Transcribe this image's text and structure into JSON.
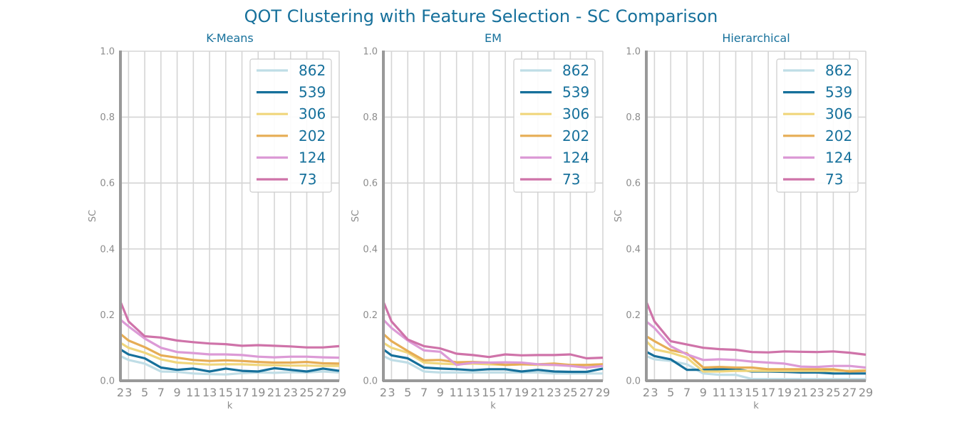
{
  "figure": {
    "title": "QOT Clustering with Feature Selection - SC Comparison"
  },
  "chart_data": [
    {
      "type": "line",
      "title": "K-Means",
      "xlabel": "k",
      "ylabel": "SC",
      "xlim": [
        2,
        29
      ],
      "ylim": [
        0.0,
        1.0
      ],
      "xticks": [
        2,
        3,
        5,
        7,
        9,
        11,
        13,
        15,
        17,
        19,
        21,
        23,
        25,
        27,
        29
      ],
      "yticks": [
        "0.0",
        "0.2",
        "0.4",
        "0.6",
        "0.8",
        "1.0"
      ],
      "legend": "top-right",
      "x": [
        2,
        3,
        5,
        7,
        9,
        11,
        13,
        15,
        17,
        19,
        21,
        23,
        25,
        27,
        29
      ],
      "series": [
        {
          "name": "862",
          "color": "#bfdde6",
          "values": [
            0.075,
            0.063,
            0.052,
            0.028,
            0.027,
            0.022,
            0.02,
            0.019,
            0.023,
            0.025,
            0.024,
            0.026,
            0.025,
            0.028,
            0.025
          ]
        },
        {
          "name": "539",
          "color": "#16709b",
          "values": [
            0.095,
            0.08,
            0.068,
            0.04,
            0.033,
            0.037,
            0.028,
            0.037,
            0.03,
            0.028,
            0.038,
            0.033,
            0.028,
            0.037,
            0.03
          ]
        },
        {
          "name": "306",
          "color": "#f0d67c",
          "values": [
            0.115,
            0.1,
            0.085,
            0.065,
            0.055,
            0.052,
            0.049,
            0.05,
            0.05,
            0.048,
            0.047,
            0.046,
            0.046,
            0.045,
            0.045
          ]
        },
        {
          "name": "202",
          "color": "#e6ad55",
          "values": [
            0.142,
            0.122,
            0.102,
            0.077,
            0.07,
            0.063,
            0.06,
            0.062,
            0.06,
            0.057,
            0.055,
            0.055,
            0.057,
            0.053,
            0.052
          ]
        },
        {
          "name": "124",
          "color": "#dc9ad6",
          "values": [
            0.185,
            0.165,
            0.128,
            0.1,
            0.087,
            0.084,
            0.08,
            0.08,
            0.078,
            0.073,
            0.071,
            0.073,
            0.073,
            0.071,
            0.07
          ]
        },
        {
          "name": "73",
          "color": "#cf73a9",
          "values": [
            0.24,
            0.18,
            0.135,
            0.131,
            0.122,
            0.117,
            0.113,
            0.111,
            0.106,
            0.108,
            0.106,
            0.104,
            0.101,
            0.101,
            0.105
          ]
        }
      ]
    },
    {
      "type": "line",
      "title": "EM",
      "xlabel": "k",
      "ylabel": "SC",
      "xlim": [
        2,
        29
      ],
      "ylim": [
        0.0,
        1.0
      ],
      "xticks": [
        2,
        3,
        5,
        7,
        9,
        11,
        13,
        15,
        17,
        19,
        21,
        23,
        25,
        27,
        29
      ],
      "yticks": [
        "0.0",
        "0.2",
        "0.4",
        "0.6",
        "0.8",
        "1.0"
      ],
      "legend": "top-right",
      "x": [
        2,
        3,
        5,
        7,
        9,
        11,
        13,
        15,
        17,
        19,
        21,
        23,
        25,
        27,
        29
      ],
      "series": [
        {
          "name": "862",
          "color": "#bfdde6",
          "values": [
            0.075,
            0.063,
            0.055,
            0.028,
            0.025,
            0.025,
            0.025,
            0.025,
            0.025,
            0.025,
            0.025,
            0.022,
            0.022,
            0.022,
            0.022
          ]
        },
        {
          "name": "539",
          "color": "#16709b",
          "values": [
            0.095,
            0.077,
            0.068,
            0.04,
            0.037,
            0.035,
            0.032,
            0.035,
            0.035,
            0.028,
            0.033,
            0.028,
            0.027,
            0.027,
            0.037
          ]
        },
        {
          "name": "306",
          "color": "#f0d67c",
          "values": [
            0.115,
            0.1,
            0.085,
            0.055,
            0.052,
            0.05,
            0.052,
            0.05,
            0.048,
            0.05,
            0.048,
            0.048,
            0.048,
            0.048,
            0.05
          ]
        },
        {
          "name": "202",
          "color": "#e6ad55",
          "values": [
            0.142,
            0.12,
            0.09,
            0.062,
            0.063,
            0.056,
            0.057,
            0.055,
            0.048,
            0.05,
            0.05,
            0.052,
            0.048,
            0.048,
            0.05
          ]
        },
        {
          "name": "124",
          "color": "#dc9ad6",
          "values": [
            0.185,
            0.16,
            0.122,
            0.092,
            0.088,
            0.048,
            0.055,
            0.055,
            0.056,
            0.055,
            0.05,
            0.048,
            0.045,
            0.04,
            0.045
          ]
        },
        {
          "name": "73",
          "color": "#cf73a9",
          "values": [
            0.24,
            0.18,
            0.125,
            0.105,
            0.098,
            0.082,
            0.078,
            0.072,
            0.08,
            0.077,
            0.078,
            0.078,
            0.08,
            0.068,
            0.07
          ]
        }
      ]
    },
    {
      "type": "line",
      "title": "Hierarchical",
      "xlabel": "k",
      "ylabel": "SC",
      "xlim": [
        2,
        29
      ],
      "ylim": [
        0.0,
        1.0
      ],
      "xticks": [
        2,
        3,
        5,
        7,
        9,
        11,
        13,
        15,
        17,
        19,
        21,
        23,
        25,
        27,
        29
      ],
      "yticks": [
        "0.0",
        "0.2",
        "0.4",
        "0.6",
        "0.8",
        "1.0"
      ],
      "legend": "top-right",
      "x": [
        2,
        3,
        5,
        7,
        9,
        11,
        13,
        15,
        17,
        19,
        21,
        23,
        25,
        27,
        29
      ],
      "series": [
        {
          "name": "862",
          "color": "#bfdde6",
          "values": [
            0.075,
            0.065,
            0.06,
            0.05,
            0.022,
            0.018,
            0.018,
            0.005,
            0.005,
            0.005,
            0.005,
            0.005,
            0.005,
            0.005,
            0.005
          ]
        },
        {
          "name": "539",
          "color": "#16709b",
          "values": [
            0.088,
            0.075,
            0.065,
            0.033,
            0.033,
            0.035,
            0.035,
            0.028,
            0.028,
            0.027,
            0.025,
            0.025,
            0.022,
            0.022,
            0.022
          ]
        },
        {
          "name": "306",
          "color": "#f0d67c",
          "values": [
            0.12,
            0.095,
            0.085,
            0.07,
            0.028,
            0.028,
            0.03,
            0.03,
            0.03,
            0.03,
            0.03,
            0.03,
            0.03,
            0.03,
            0.032
          ]
        },
        {
          "name": "202",
          "color": "#e6ad55",
          "values": [
            0.135,
            0.12,
            0.093,
            0.083,
            0.04,
            0.042,
            0.04,
            0.04,
            0.035,
            0.035,
            0.035,
            0.035,
            0.035,
            0.028,
            0.03
          ]
        },
        {
          "name": "124",
          "color": "#dc9ad6",
          "values": [
            0.18,
            0.16,
            0.105,
            0.08,
            0.063,
            0.065,
            0.063,
            0.058,
            0.055,
            0.052,
            0.043,
            0.042,
            0.045,
            0.045,
            0.04
          ]
        },
        {
          "name": "73",
          "color": "#cf73a9",
          "values": [
            0.24,
            0.18,
            0.12,
            0.11,
            0.1,
            0.096,
            0.094,
            0.087,
            0.086,
            0.089,
            0.088,
            0.087,
            0.089,
            0.085,
            0.079
          ]
        }
      ]
    }
  ]
}
